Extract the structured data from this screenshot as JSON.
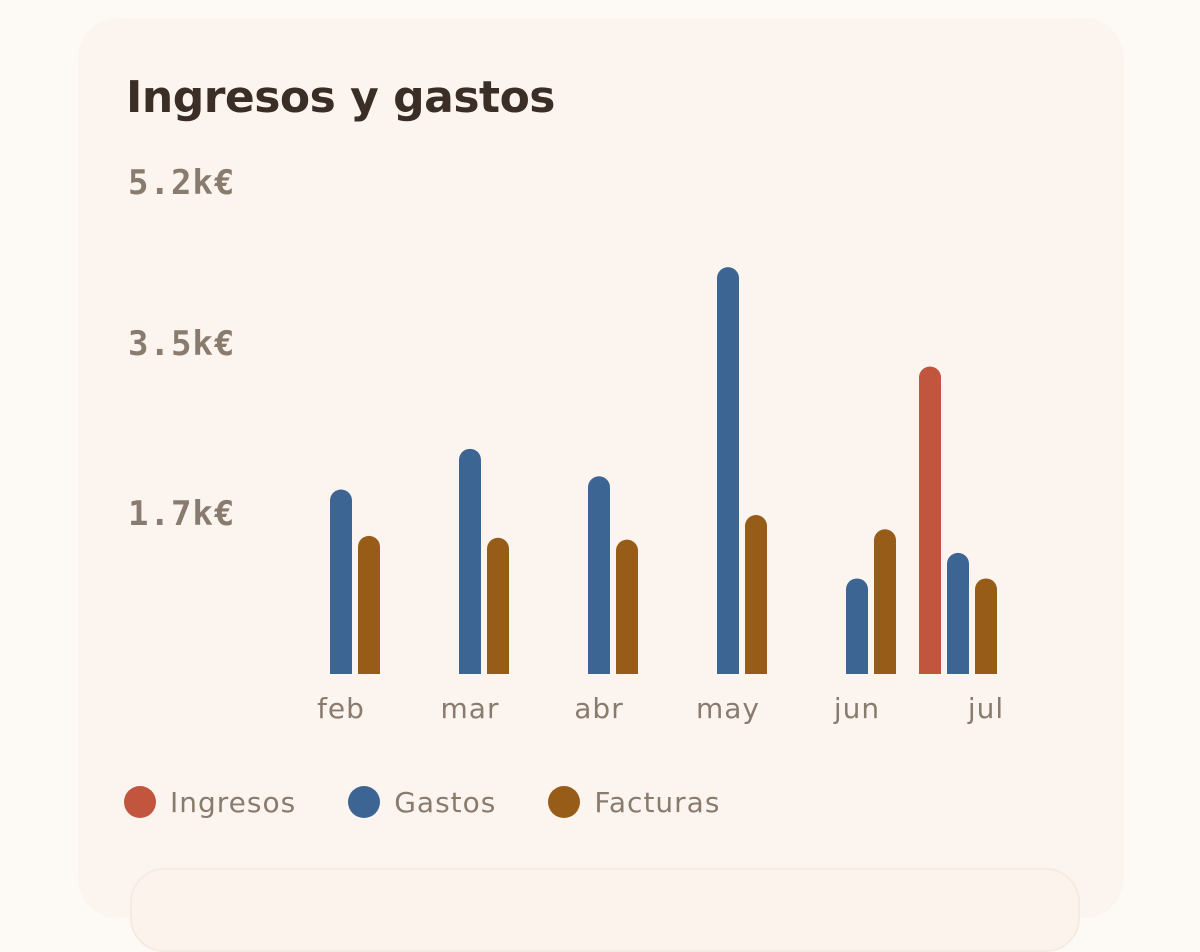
{
  "card": {
    "title": "Ingresos y gastos"
  },
  "chart_data": {
    "type": "bar",
    "title": "Ingresos y gastos",
    "xlabel": "",
    "ylabel": "",
    "categories": [
      "feb",
      "mar",
      "abr",
      "may",
      "jun",
      "jul"
    ],
    "y_tick_labels": [
      "5.2k€",
      "3.5k€",
      "1.7k€"
    ],
    "y_tick_values": [
      5200,
      3500,
      1700
    ],
    "ylim": [
      0,
      5200
    ],
    "grid": false,
    "legend_position": "bottom-left",
    "series": [
      {
        "name": "Ingresos",
        "color": "#c2553e",
        "values": [
          0,
          0,
          0,
          0,
          0,
          3250
        ]
      },
      {
        "name": "Gastos",
        "color": "#3d6593",
        "values": [
          1950,
          2380,
          2090,
          4300,
          1010,
          1280
        ]
      },
      {
        "name": "Facturas",
        "color": "#975c17",
        "values": [
          1460,
          1440,
          1420,
          1680,
          1530,
          1010
        ]
      }
    ]
  }
}
